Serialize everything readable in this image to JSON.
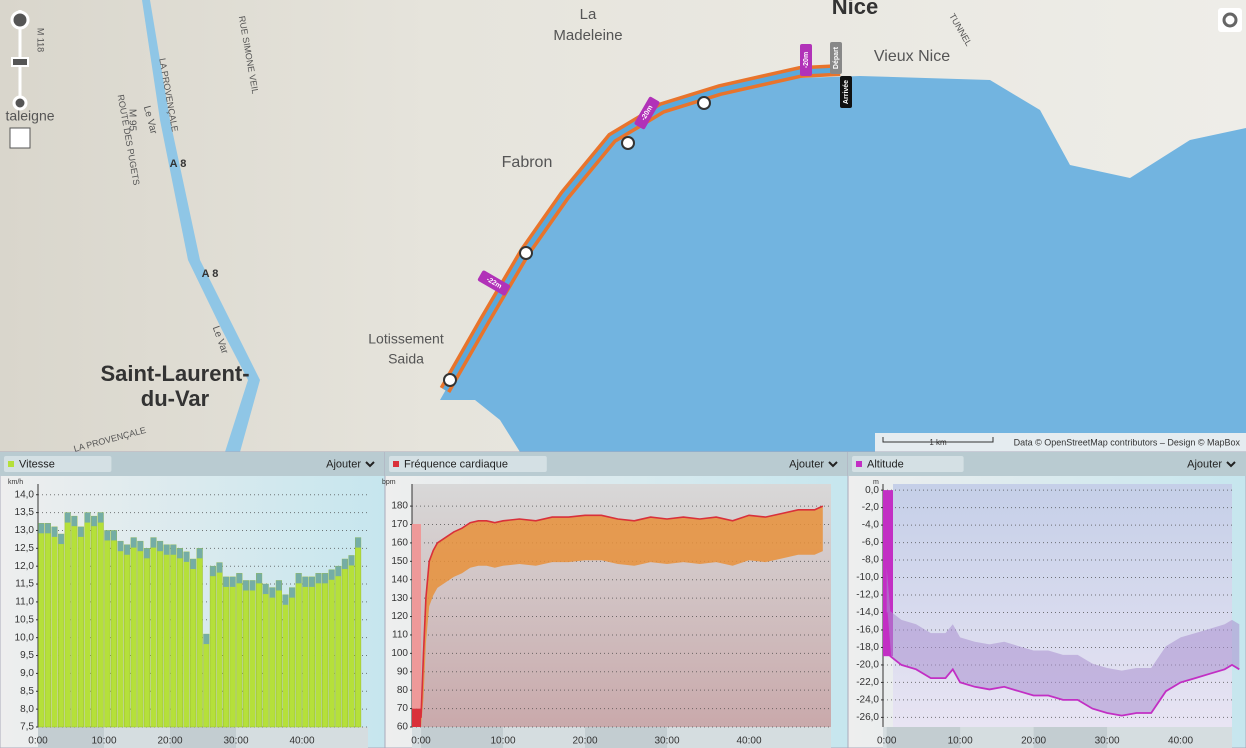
{
  "map": {
    "labels": [
      "Nice",
      "La",
      "Madeleine",
      "Vieux Nice",
      "Fabron",
      "Lotissement",
      "Saida",
      "Saint-Laurent-",
      "du-Var",
      "A 8",
      "A 8",
      "M 95",
      "ROUTE DES PUGETS",
      "LA PROVENÇALE",
      "Le Var",
      "RUE SIMONE VEIL",
      "TUNNEL",
      "M 118",
      "taleigne",
      "LA PROVENÇALE",
      "Le Var"
    ],
    "markers": [
      "-22m",
      "-20m",
      "-20m",
      "Départ",
      "Arrivée"
    ],
    "scale": "1 km",
    "attribution": "Data © OpenStreetMap contributors – Design © MapBox"
  },
  "chart_data": [
    {
      "type": "bar",
      "title": "Vitesse",
      "action": "Ajouter",
      "unit": "km/h",
      "color": "#b5e03a",
      "cap_color": "#6aa3b8",
      "x": [
        0,
        1,
        2,
        3,
        4,
        5,
        6,
        7,
        8,
        9,
        10,
        11,
        12,
        13,
        14,
        15,
        16,
        17,
        18,
        19,
        20,
        21,
        22,
        23,
        24,
        25,
        26,
        27,
        28,
        29,
        30,
        31,
        32,
        33,
        34,
        35,
        36,
        37,
        38,
        39,
        40,
        41,
        42,
        43,
        44,
        45,
        46,
        47,
        48
      ],
      "values": [
        13.2,
        13.2,
        13.1,
        12.9,
        13.5,
        13.4,
        13.1,
        13.5,
        13.4,
        13.5,
        13.0,
        13.0,
        12.7,
        12.6,
        12.8,
        12.7,
        12.5,
        12.8,
        12.7,
        12.6,
        12.6,
        12.5,
        12.4,
        12.2,
        12.5,
        10.1,
        12.0,
        12.1,
        11.7,
        11.7,
        11.8,
        11.6,
        11.6,
        11.8,
        11.5,
        11.4,
        11.6,
        11.2,
        11.4,
        11.8,
        11.7,
        11.7,
        11.8,
        11.8,
        11.9,
        12.0,
        12.2,
        12.3,
        12.8
      ],
      "xlim": [
        0,
        50
      ],
      "ylim": [
        7.5,
        14.3
      ],
      "xticks": [
        {
          "value": 0,
          "label": "0:00"
        },
        {
          "value": 10,
          "label": "10:00"
        },
        {
          "value": 20,
          "label": "20:00"
        },
        {
          "value": 30,
          "label": "30:00"
        },
        {
          "value": 40,
          "label": "40:00"
        }
      ],
      "yticks": [
        {
          "value": 7.5,
          "label": "7,5"
        },
        {
          "value": 8,
          "label": "8,0"
        },
        {
          "value": 8.5,
          "label": "8,5"
        },
        {
          "value": 9,
          "label": "9,0"
        },
        {
          "value": 9.5,
          "label": "9,5"
        },
        {
          "value": 10,
          "label": "10,0"
        },
        {
          "value": 10.5,
          "label": "10,5"
        },
        {
          "value": 11,
          "label": "11,0"
        },
        {
          "value": 11.5,
          "label": "11,5"
        },
        {
          "value": 12,
          "label": "12,0"
        },
        {
          "value": 12.5,
          "label": "12,5"
        },
        {
          "value": 13,
          "label": "13,0"
        },
        {
          "value": 13.5,
          "label": "13,5"
        },
        {
          "value": 14,
          "label": "14,0"
        }
      ],
      "grid": true
    },
    {
      "type": "line",
      "title": "Fréquence cardiaque",
      "action": "Ajouter",
      "unit": "bpm",
      "color": "#d9303a",
      "fill_color": "#e8913a",
      "x": [
        0,
        0.3,
        0.6,
        1,
        1.5,
        2,
        3,
        4,
        5,
        6,
        7,
        8,
        9,
        10,
        12,
        14,
        16,
        18,
        20,
        22,
        24,
        26,
        28,
        30,
        32,
        34,
        36,
        38,
        40,
        42,
        44,
        46,
        48,
        49
      ],
      "values": [
        65,
        100,
        130,
        150,
        156,
        160,
        163,
        166,
        168,
        171,
        172,
        172,
        171,
        172,
        173,
        172,
        174,
        174,
        175,
        175,
        173,
        172,
        174,
        173,
        174,
        173,
        174,
        172,
        175,
        174,
        176,
        178,
        178,
        180
      ],
      "xlim": [
        -1.1,
        50
      ],
      "ylim": [
        60,
        192
      ],
      "xticks": [
        {
          "value": 0,
          "label": "0:00"
        },
        {
          "value": 10,
          "label": "10:00"
        },
        {
          "value": 20,
          "label": "20:00"
        },
        {
          "value": 30,
          "label": "30:00"
        },
        {
          "value": 40,
          "label": "40:00"
        }
      ],
      "yticks": [
        60,
        70,
        80,
        90,
        100,
        110,
        120,
        130,
        140,
        150,
        160,
        170,
        180
      ],
      "grid": true
    },
    {
      "type": "area",
      "title": "Altitude",
      "action": "Ajouter",
      "unit": "m",
      "color": "#c22fc4",
      "fill_color": "#a98fcf",
      "x": [
        0,
        0.5,
        2,
        4,
        6,
        8,
        9,
        10,
        12,
        14,
        16,
        18,
        20,
        22,
        24,
        26,
        28,
        30,
        32,
        34,
        36,
        38,
        40,
        42,
        44,
        46,
        47,
        48
      ],
      "values": [
        -14,
        -19,
        -20,
        -20.5,
        -21.5,
        -21.5,
        -20.5,
        -22,
        -22.5,
        -22.8,
        -22.5,
        -23,
        -23.5,
        -23.5,
        -24,
        -24,
        -25,
        -25.5,
        -25.8,
        -25.5,
        -25.5,
        -23,
        -22,
        -21.5,
        -21,
        -20.5,
        -20,
        -20.5
      ],
      "xlim": [
        -0.5,
        47
      ],
      "ylim": [
        -27.1,
        0.7
      ],
      "xticks": [
        {
          "value": 0,
          "label": "0:00"
        },
        {
          "value": 10,
          "label": "10:00"
        },
        {
          "value": 20,
          "label": "20:00"
        },
        {
          "value": 30,
          "label": "30:00"
        },
        {
          "value": 40,
          "label": "40:00"
        }
      ],
      "yticks": [
        {
          "value": 0,
          "label": "0,0"
        },
        {
          "value": -2,
          "label": "-2,0"
        },
        {
          "value": -4,
          "label": "-4,0"
        },
        {
          "value": -6,
          "label": "-6,0"
        },
        {
          "value": -8,
          "label": "-8,0"
        },
        {
          "value": -10,
          "label": "-10,0"
        },
        {
          "value": -12,
          "label": "-12,0"
        },
        {
          "value": -14,
          "label": "-14,0"
        },
        {
          "value": -16,
          "label": "-16,0"
        },
        {
          "value": -18,
          "label": "-18,0"
        },
        {
          "value": -20,
          "label": "-20,0"
        },
        {
          "value": -22,
          "label": "-22,0"
        },
        {
          "value": -24,
          "label": "-24,0"
        },
        {
          "value": -26,
          "label": "-26,0"
        }
      ],
      "grid": true
    }
  ]
}
